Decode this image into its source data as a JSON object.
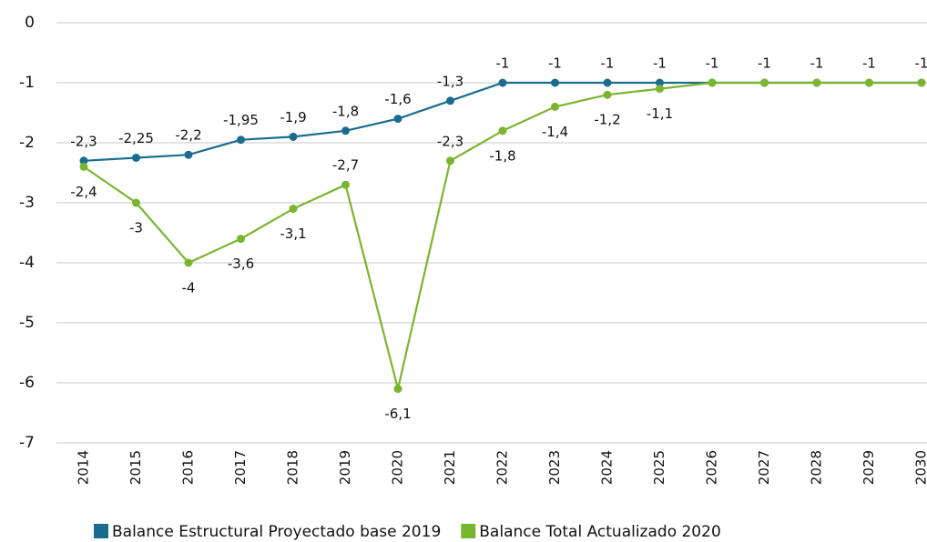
{
  "chart_data": {
    "type": "line",
    "categories": [
      "2014",
      "2015",
      "2016",
      "2017",
      "2018",
      "2019",
      "2020",
      "2021",
      "2022",
      "2023",
      "2024",
      "2025",
      "2026",
      "2027",
      "2028",
      "2029",
      "2030"
    ],
    "series": [
      {
        "name": "Balance Estructural Proyectado base 2019",
        "color": "#1b6d8e",
        "values": [
          -2.3,
          -2.25,
          -2.2,
          -1.95,
          -1.9,
          -1.8,
          -1.6,
          -1.3,
          -1,
          -1,
          -1,
          -1,
          -1,
          -1,
          -1,
          -1,
          -1
        ],
        "value_labels": [
          "-2,3",
          "-2,25",
          "-2,2",
          "-1,95",
          "-1,9",
          "-1,8",
          "-1,6",
          "-1,3",
          "-1",
          "-1",
          "-1",
          "-1",
          "-1",
          "-1",
          "-1",
          "-1",
          "-1"
        ]
      },
      {
        "name": "Balance Total Actualizado 2020",
        "color": "#7ab52f",
        "values": [
          -2.4,
          -3,
          -4,
          -3.6,
          -3.1,
          -2.7,
          -6.1,
          -2.3,
          -1.8,
          -1.4,
          -1.2,
          -1.1,
          -1,
          -1,
          -1,
          -1,
          -1
        ],
        "value_labels": [
          "-2,4",
          "-3",
          "-4",
          "-3,6",
          "-3,1",
          "-2,7",
          "-6,1",
          "-2,3",
          "-1,8",
          "-1,4",
          "-1,2",
          "-1,1",
          null,
          null,
          null,
          null,
          null
        ]
      }
    ],
    "ylim": [
      -7,
      0
    ],
    "yticks": [
      0,
      -1,
      -2,
      -3,
      -4,
      -5,
      -6,
      -7
    ],
    "grid": true,
    "legend": "bottom"
  }
}
